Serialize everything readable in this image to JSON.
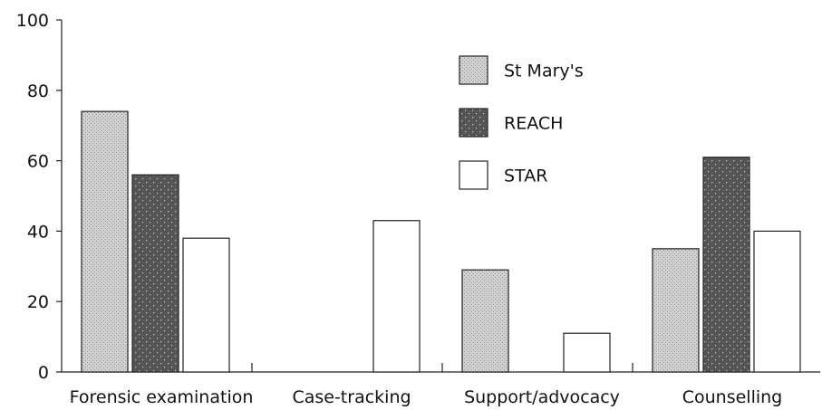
{
  "chart_data": {
    "type": "bar",
    "categories": [
      "Forensic examination",
      "Case-tracking",
      "Support/advocacy",
      "Counselling"
    ],
    "series": [
      {
        "name": "St Mary's",
        "values": [
          74,
          0,
          29,
          35
        ],
        "color": "#c8c8c8",
        "pattern": "light-dots"
      },
      {
        "name": "REACH",
        "values": [
          56,
          0,
          0,
          61
        ],
        "color": "#555555",
        "pattern": "dark-dots"
      },
      {
        "name": "STAR",
        "values": [
          38,
          43,
          11,
          40
        ],
        "color": "#ffffff",
        "pattern": "none"
      }
    ],
    "ylim": [
      0,
      100
    ],
    "yticks": [
      0,
      20,
      40,
      60,
      80,
      100
    ],
    "title": "",
    "xlabel": "",
    "ylabel": "",
    "grid": false,
    "legend": "top-right"
  }
}
